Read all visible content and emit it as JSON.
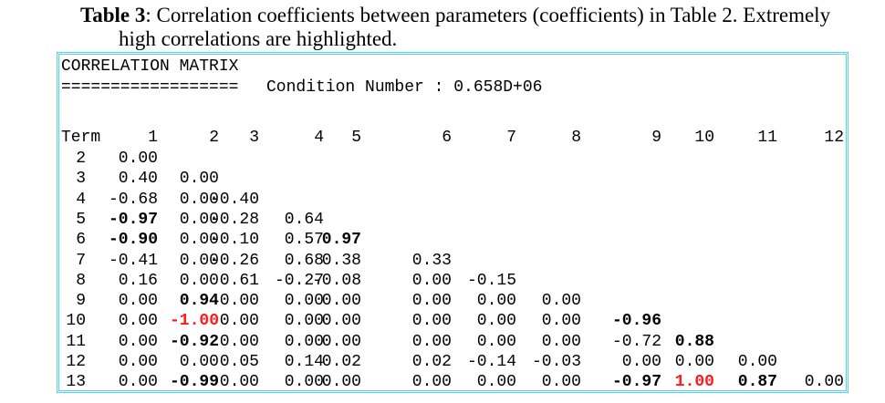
{
  "caption": {
    "label": "Table 3",
    "line1_rest": ": Correlation coefficients between parameters (coefficients) in Table 2. Extremely",
    "line2": "high correlations are highlighted."
  },
  "matrix": {
    "title": "CORRELATION MATRIX",
    "underline": "==================",
    "condition_number": "Condition Number : 0.658D+06",
    "term_label": "Term",
    "columns": [
      "1",
      "2",
      "3",
      "4",
      "5",
      "6",
      "7",
      "8",
      "9",
      "10",
      "11",
      "12"
    ],
    "rows": [
      {
        "term": "2",
        "cells": [
          "0.00"
        ]
      },
      {
        "term": "3",
        "cells": [
          "0.40",
          "0.00"
        ]
      },
      {
        "term": "4",
        "cells": [
          "-0.68",
          "0.00",
          "-0.40"
        ]
      },
      {
        "term": "5",
        "cells": [
          "-0.97",
          "0.00",
          "-0.28",
          "0.64"
        ]
      },
      {
        "term": "6",
        "cells": [
          "-0.90",
          "0.00",
          "-0.10",
          "0.57",
          "0.97"
        ]
      },
      {
        "term": "7",
        "cells": [
          "-0.41",
          "0.00",
          "-0.26",
          "0.68",
          "0.38",
          "0.33"
        ]
      },
      {
        "term": "8",
        "cells": [
          "0.16",
          "0.00",
          "0.61",
          "-0.27",
          "-0.08",
          "0.00",
          "-0.15"
        ]
      },
      {
        "term": "9",
        "cells": [
          "0.00",
          "0.94",
          "0.00",
          "0.00",
          "0.00",
          "0.00",
          "0.00",
          "0.00"
        ]
      },
      {
        "term": "10",
        "cells": [
          "0.00",
          "-1.00",
          "0.00",
          "0.00",
          "0.00",
          "0.00",
          "0.00",
          "0.00",
          "-0.96"
        ]
      },
      {
        "term": "11",
        "cells": [
          "0.00",
          "-0.92",
          "0.00",
          "0.00",
          "0.00",
          "0.00",
          "0.00",
          "0.00",
          "-0.72",
          "0.88"
        ]
      },
      {
        "term": "12",
        "cells": [
          "0.00",
          "0.00",
          "0.05",
          "0.14",
          "0.02",
          "0.02",
          "-0.14",
          "-0.03",
          "0.00",
          "0.00",
          "0.00"
        ]
      },
      {
        "term": "13",
        "cells": [
          "0.00",
          "-0.99",
          "0.00",
          "0.00",
          "0.00",
          "0.00",
          "0.00",
          "0.00",
          "-0.97",
          "1.00",
          "0.87",
          "0.00"
        ]
      }
    ],
    "highlights": {
      "bold": [
        [
          "5",
          0
        ],
        [
          "6",
          0
        ],
        [
          "6",
          4
        ],
        [
          "9",
          1
        ],
        [
          "10",
          8
        ],
        [
          "11",
          1
        ],
        [
          "11",
          9
        ],
        [
          "13",
          1
        ],
        [
          "13",
          8
        ],
        [
          "13",
          10
        ]
      ],
      "red": [
        [
          "10",
          1
        ],
        [
          "13",
          9
        ]
      ]
    },
    "colors": {
      "frame": "#4fd6e8",
      "red_highlight": "#ff1a1a"
    }
  }
}
